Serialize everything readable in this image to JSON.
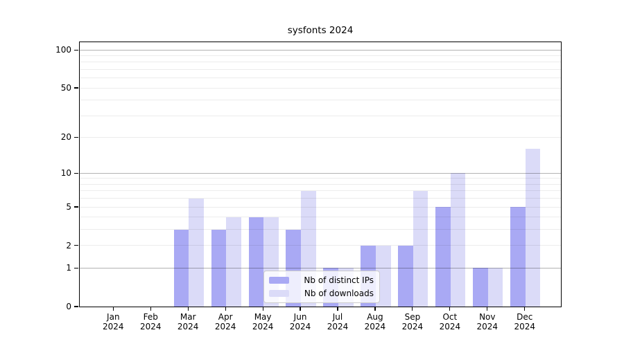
{
  "title": "sysfonts 2024",
  "chart_data": {
    "type": "bar",
    "title": "sysfonts 2024",
    "y_scale": "log10(1+x)",
    "grid": true,
    "legend_position": "lower center",
    "categories": [
      "Jan 2024",
      "Feb 2024",
      "Mar 2024",
      "Apr 2024",
      "May 2024",
      "Jun 2024",
      "Jul 2024",
      "Aug 2024",
      "Sep 2024",
      "Oct 2024",
      "Nov 2024",
      "Dec 2024"
    ],
    "x_tick_month": [
      "Jan",
      "Feb",
      "Mar",
      "Apr",
      "May",
      "Jun",
      "Jul",
      "Aug",
      "Sep",
      "Oct",
      "Nov",
      "Dec"
    ],
    "x_tick_year": "2024",
    "series": [
      {
        "name": "Nb of distinct IPs",
        "color": "#a9a9f4",
        "values": [
          0,
          0,
          3,
          3,
          4,
          3,
          1,
          2,
          2,
          5,
          1,
          5
        ]
      },
      {
        "name": "Nb of downloads",
        "color": "#dbdbf8",
        "values": [
          0,
          0,
          6,
          4,
          4,
          7,
          1,
          2,
          7,
          10,
          1,
          16
        ]
      }
    ],
    "y_ticks": [
      0,
      1,
      2,
      5,
      10,
      20,
      50,
      100
    ],
    "y_major_gridlines": [
      1,
      10,
      100
    ],
    "y_minor_gridlines": [
      2,
      3,
      4,
      5,
      6,
      7,
      8,
      9,
      20,
      30,
      40,
      50,
      60,
      70,
      80,
      90
    ],
    "ylim": [
      0,
      115
    ],
    "colors": {
      "axis": "#000000",
      "major_grid": "#b3b3b3",
      "minor_grid": "#ebebeb"
    }
  }
}
